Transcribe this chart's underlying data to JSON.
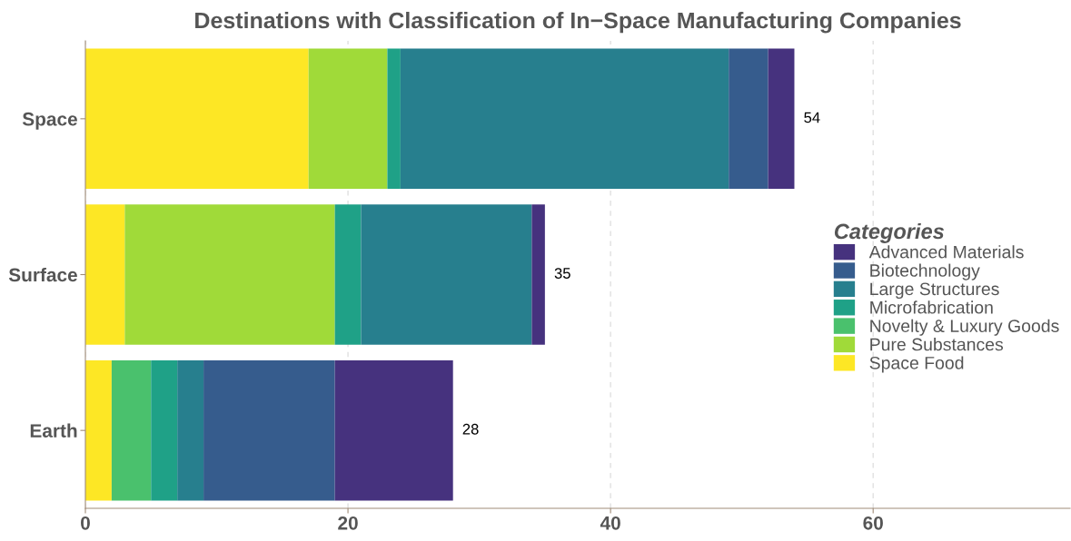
{
  "chart_data": {
    "type": "bar",
    "orientation": "horizontal",
    "stacked": true,
    "title": "Destinations with Classification of In−Space Manufacturing Companies",
    "legend_title": "Categories",
    "categories": [
      "Space",
      "Surface",
      "Earth"
    ],
    "series": [
      {
        "name": "Space Food",
        "color": "#fde725",
        "values": [
          17,
          3,
          2
        ]
      },
      {
        "name": "Pure Substances",
        "color": "#a0da39",
        "values": [
          6,
          16,
          0
        ]
      },
      {
        "name": "Novelty & Luxury Goods",
        "color": "#4ac16d",
        "values": [
          0,
          0,
          3
        ]
      },
      {
        "name": "Microfabrication",
        "color": "#1fa187",
        "values": [
          1,
          2,
          2
        ]
      },
      {
        "name": "Large Structures",
        "color": "#277f8e",
        "values": [
          25,
          13,
          2
        ]
      },
      {
        "name": "Biotechnology",
        "color": "#365c8d",
        "values": [
          3,
          0,
          10
        ]
      },
      {
        "name": "Advanced Materials",
        "color": "#46327e",
        "values": [
          2,
          1,
          9
        ]
      }
    ],
    "totals": [
      "54",
      "35",
      "28"
    ],
    "xlim": [
      0,
      75
    ],
    "xticks": [
      0,
      20,
      40,
      60
    ],
    "grid": "x",
    "legend": "right"
  }
}
